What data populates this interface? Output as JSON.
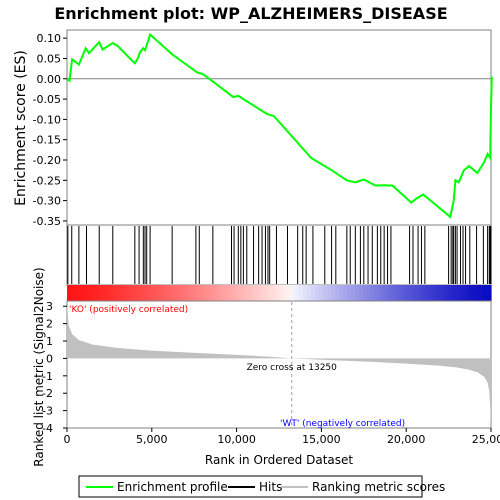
{
  "chart_data": {
    "type": "line",
    "title": "Enrichment plot: WP_ALZHEIMERS_DISEASE",
    "xlabel": "Rank in Ordered Dataset",
    "ylabel_top": "Enrichment score (ES)",
    "ylabel_bottom": "Ranked list metric (Signal2Noise)",
    "xlim": [
      0,
      25000
    ],
    "x_ticks": [
      0,
      5000,
      10000,
      15000,
      20000,
      25000
    ],
    "x_tick_labels": [
      "0",
      "5,000",
      "10,000",
      "15,000",
      "20,000",
      "25,000"
    ],
    "es_ylim": [
      -0.36,
      0.12
    ],
    "es_ticks": [
      0.1,
      0.05,
      0.0,
      -0.05,
      -0.1,
      -0.15,
      -0.2,
      -0.25,
      -0.3,
      -0.35
    ],
    "es_tick_labels": [
      "0.10",
      "0.05",
      "0.00",
      "-0.05",
      "-0.10",
      "-0.15",
      "-0.20",
      "-0.25",
      "-0.30",
      "-0.35"
    ],
    "metric_ylim": [
      -4,
      3.3
    ],
    "metric_ticks": [
      3,
      2,
      1,
      0,
      -1,
      -2,
      -3,
      -4
    ],
    "metric_tick_labels": [
      "3",
      "2",
      "1",
      "0",
      "-1",
      "-2",
      "-3",
      "-4"
    ],
    "grid": false,
    "series": [
      {
        "name": "Enrichment profile",
        "color": "#00ff00",
        "x": [
          0,
          150,
          300,
          700,
          1100,
          1300,
          1900,
          2100,
          2700,
          3000,
          4000,
          4200,
          4300,
          4500,
          4600,
          4800,
          4900,
          6200,
          7700,
          8000,
          8700,
          9800,
          10100,
          10400,
          11800,
          12200,
          14400,
          15600,
          16500,
          17000,
          17500,
          18200,
          18700,
          19200,
          20300,
          20600,
          21000,
          22600,
          22800,
          22900,
          23100,
          23400,
          23700,
          24200,
          24600,
          24800,
          24950,
          25000,
          25050
        ],
        "y": [
          0.0,
          -0.005,
          0.048,
          0.035,
          0.075,
          0.063,
          0.09,
          0.072,
          0.088,
          0.08,
          0.038,
          0.052,
          0.065,
          0.075,
          0.07,
          0.095,
          0.109,
          0.06,
          0.015,
          0.012,
          -0.01,
          -0.045,
          -0.042,
          -0.05,
          -0.087,
          -0.092,
          -0.195,
          -0.225,
          -0.25,
          -0.255,
          -0.248,
          -0.263,
          -0.262,
          -0.263,
          -0.305,
          -0.295,
          -0.285,
          -0.34,
          -0.3,
          -0.25,
          -0.255,
          -0.225,
          -0.215,
          -0.232,
          -0.205,
          -0.185,
          -0.195,
          -0.07,
          0.005
        ]
      },
      {
        "name": "Hits",
        "color": "#000000",
        "hit_positions": [
          50,
          280,
          700,
          1150,
          1900,
          2700,
          4000,
          4250,
          4500,
          4600,
          4700,
          4900,
          6200,
          7600,
          7800,
          8600,
          9700,
          9850,
          10100,
          10250,
          10400,
          10600,
          11000,
          11300,
          11500,
          11700,
          11850,
          11950,
          12350,
          13000,
          13600,
          13900,
          14100,
          14500,
          15200,
          15600,
          15850,
          16500,
          16700,
          17000,
          17300,
          17500,
          17750,
          18000,
          18300,
          18500,
          18700,
          18900,
          19100,
          20200,
          20400,
          20700,
          20900,
          21100,
          22500,
          22650,
          22750,
          22800,
          22900,
          23000,
          23200,
          23350,
          23500,
          23750,
          24150,
          24550,
          24800,
          24900,
          24950,
          25000
        ]
      },
      {
        "name": "Ranking metric scores",
        "color": "#c0c0c0",
        "x": [
          0,
          100,
          300,
          700,
          1500,
          3000,
          5000,
          8000,
          10000,
          12000,
          13250,
          15000,
          18000,
          20000,
          22000,
          23000,
          23700,
          24200,
          24600,
          24800,
          24900,
          24950,
          25000
        ],
        "y": [
          3.1,
          1.9,
          1.4,
          1.05,
          0.8,
          0.6,
          0.45,
          0.3,
          0.2,
          0.1,
          0.0,
          -0.08,
          -0.2,
          -0.3,
          -0.42,
          -0.52,
          -0.65,
          -0.8,
          -1.05,
          -1.4,
          -1.9,
          -2.8,
          -3.9
        ]
      }
    ],
    "annotations": {
      "pos_label": "'KO' (positively correlated)",
      "neg_label": "'WT' (negatively correlated)",
      "zero_cross": "Zero cross at 13250",
      "zero_cross_x": 13250
    },
    "legend_placement": "bottom"
  }
}
